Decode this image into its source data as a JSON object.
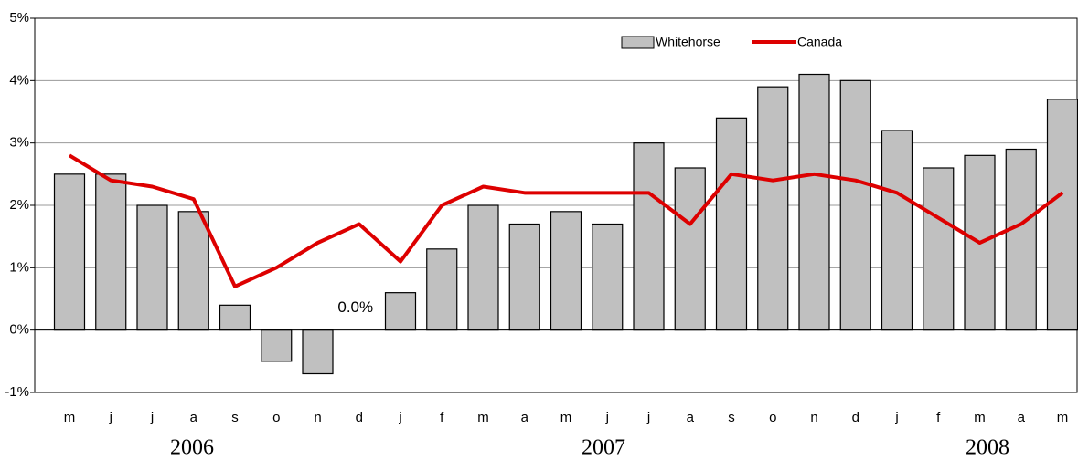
{
  "chart_data": {
    "type": "bar-line",
    "categories": [
      "m",
      "j",
      "j",
      "a",
      "s",
      "o",
      "n",
      "d",
      "j",
      "f",
      "m",
      "a",
      "m",
      "j",
      "j",
      "a",
      "s",
      "o",
      "n",
      "d",
      "j",
      "f",
      "m",
      "a",
      "m"
    ],
    "year_labels": [
      "2006",
      "2007",
      "2008"
    ],
    "series": [
      {
        "name": "Whitehorse",
        "type": "bar",
        "color": "#c0c0c0",
        "values": [
          2.5,
          2.5,
          2.0,
          1.9,
          0.4,
          -0.5,
          -0.7,
          0.0,
          0.6,
          1.3,
          2.0,
          1.7,
          1.9,
          1.7,
          3.0,
          2.6,
          3.4,
          3.9,
          4.1,
          4.0,
          3.2,
          2.6,
          2.8,
          2.9,
          3.7
        ],
        "value_labels": [
          null,
          null,
          null,
          null,
          null,
          null,
          null,
          "0.0%",
          null,
          null,
          null,
          null,
          null,
          null,
          null,
          null,
          null,
          null,
          null,
          null,
          null,
          null,
          null,
          null,
          null
        ]
      },
      {
        "name": "Canada",
        "type": "line",
        "color": "#dd0000",
        "values": [
          2.8,
          2.4,
          2.3,
          2.1,
          0.7,
          1.0,
          1.4,
          1.7,
          1.1,
          2.0,
          2.3,
          2.2,
          2.2,
          2.2,
          2.2,
          1.7,
          2.5,
          2.4,
          2.5,
          2.4,
          2.2,
          1.8,
          1.4,
          1.7,
          2.2
        ]
      }
    ],
    "ylim": [
      -1,
      5
    ],
    "yticks": [
      {
        "value": -1,
        "label": "-1%"
      },
      {
        "value": 0,
        "label": "0%"
      },
      {
        "value": 1,
        "label": "1%"
      },
      {
        "value": 2,
        "label": "2%"
      },
      {
        "value": 3,
        "label": "3%"
      },
      {
        "value": 4,
        "label": "4%"
      },
      {
        "value": 5,
        "label": "5%"
      }
    ],
    "grid": true,
    "legend": "top"
  }
}
